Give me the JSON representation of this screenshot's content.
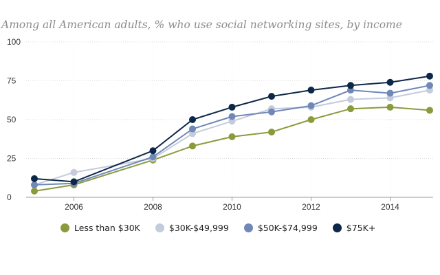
{
  "chart_data": {
    "type": "line",
    "title": "Among all American adults, % who use social networking sites, by income",
    "xlabel": "",
    "ylabel": "",
    "x": [
      2005,
      2006,
      2008,
      2009,
      2010,
      2011,
      2012,
      2013,
      2014,
      2015
    ],
    "x_ticks": [
      "2006",
      "2008",
      "2010",
      "2012",
      "2014"
    ],
    "y_ticks": [
      "0",
      "25",
      "50",
      "75",
      "100"
    ],
    "xlim": [
      2005,
      2015
    ],
    "ylim": [
      0,
      100
    ],
    "grid": "horizontal dotted",
    "legend_position": "bottom",
    "series": [
      {
        "name": "Less than $30K",
        "color": "#8a9b3b",
        "values": [
          4,
          8,
          24,
          33,
          39,
          42,
          50,
          57,
          58,
          56
        ]
      },
      {
        "name": "$30K-$49,999",
        "color": "#c4cbdc",
        "values": [
          8,
          16,
          25,
          41,
          49,
          57,
          58,
          63,
          64,
          69
        ]
      },
      {
        "name": "$50K-$74,999",
        "color": "#7088b6",
        "values": [
          8,
          9,
          26,
          44,
          52,
          55,
          59,
          69,
          67,
          72
        ]
      },
      {
        "name": "$75K+",
        "color": "#0d2748",
        "values": [
          12,
          10,
          30,
          50,
          58,
          65,
          69,
          72,
          74,
          78
        ]
      }
    ]
  }
}
